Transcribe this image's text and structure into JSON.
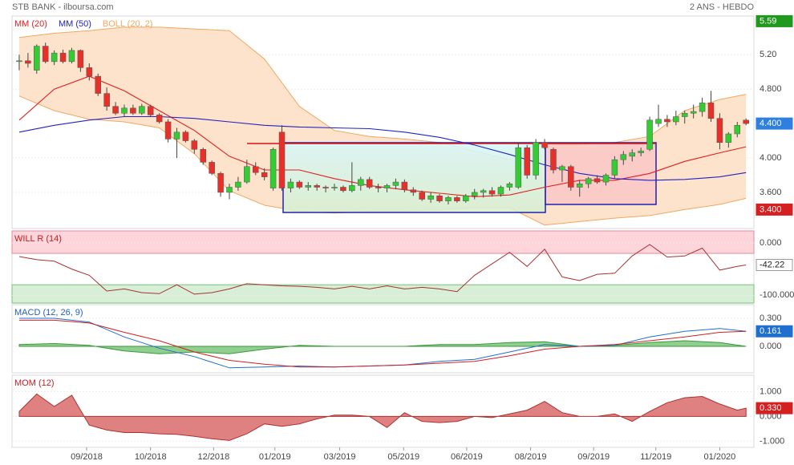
{
  "chart_data": [
    {
      "type": "candlestick",
      "title": "STB BANK - ilboursa.com",
      "subtitle": "2 ANS - HEBDO",
      "x": [
        0,
        1,
        2,
        3,
        4,
        5,
        6,
        7,
        8,
        9,
        10,
        11,
        12,
        13,
        14,
        15,
        16,
        17,
        18,
        19,
        20,
        21,
        22,
        23,
        24,
        25,
        26,
        27,
        28,
        29,
        30,
        31,
        32,
        33,
        34,
        35,
        36,
        37,
        38,
        39,
        40,
        41,
        42,
        43,
        44,
        45,
        46,
        47,
        48,
        49,
        50,
        51,
        52,
        53,
        54,
        55,
        56,
        57,
        58,
        59,
        60,
        61,
        62,
        63,
        64,
        65,
        66,
        67,
        68,
        69,
        70,
        71,
        72,
        73,
        74,
        75,
        76,
        77,
        78,
        79,
        80,
        81,
        82,
        83
      ],
      "open": [
        5.12,
        5.13,
        5.02,
        5.3,
        5.12,
        5.22,
        5.12,
        5.25,
        5.05,
        4.95,
        4.75,
        4.6,
        4.52,
        4.58,
        4.52,
        4.6,
        4.5,
        4.42,
        4.22,
        4.3,
        4.2,
        4.1,
        3.95,
        3.82,
        3.6,
        3.66,
        3.72,
        3.9,
        3.83,
        3.65,
        4.3,
        3.65,
        3.72,
        3.66,
        3.68,
        3.66,
        3.65,
        3.66,
        3.62,
        3.68,
        3.75,
        3.66,
        3.65,
        3.68,
        3.72,
        3.63,
        3.6,
        3.52,
        3.56,
        3.5,
        3.54,
        3.5,
        3.56,
        3.6,
        3.62,
        3.58,
        3.66,
        3.66,
        4.12,
        3.8,
        4.18,
        4.1,
        3.86,
        3.9,
        3.66,
        3.7,
        3.76,
        3.72,
        3.8,
        3.98,
        4.02,
        4.06,
        4.1,
        4.4,
        4.45,
        4.42,
        4.48,
        4.52,
        4.54,
        4.64,
        4.46,
        4.18,
        4.28,
        4.44
      ],
      "high": [
        5.2,
        5.22,
        5.32,
        5.34,
        5.25,
        5.26,
        5.28,
        5.26,
        5.1,
        4.98,
        4.82,
        4.65,
        4.62,
        4.62,
        4.63,
        4.62,
        4.52,
        4.45,
        4.35,
        4.32,
        4.22,
        4.12,
        3.97,
        3.84,
        3.7,
        3.78,
        3.98,
        3.95,
        3.88,
        4.12,
        4.38,
        3.76,
        3.74,
        3.72,
        3.7,
        3.68,
        3.7,
        3.68,
        3.95,
        3.78,
        3.78,
        3.7,
        3.7,
        3.76,
        3.75,
        3.66,
        3.62,
        3.6,
        3.58,
        3.56,
        3.56,
        3.58,
        3.64,
        3.64,
        3.66,
        3.68,
        3.72,
        4.18,
        4.15,
        4.22,
        4.22,
        4.12,
        3.92,
        3.92,
        3.74,
        3.78,
        3.8,
        3.82,
        4.02,
        4.08,
        4.1,
        4.12,
        4.48,
        4.62,
        4.5,
        4.55,
        4.55,
        4.62,
        4.7,
        4.78,
        4.52,
        4.3,
        4.42,
        4.46
      ],
      "low": [
        5.02,
        5.05,
        4.98,
        5.1,
        5.08,
        5.1,
        5.1,
        5.0,
        4.9,
        4.72,
        4.55,
        4.5,
        4.48,
        4.5,
        4.5,
        4.48,
        4.4,
        4.18,
        4.0,
        4.18,
        4.05,
        3.92,
        3.8,
        3.55,
        3.52,
        3.62,
        3.7,
        3.8,
        3.74,
        3.62,
        3.62,
        3.6,
        3.64,
        3.62,
        3.62,
        3.6,
        3.62,
        3.6,
        3.6,
        3.62,
        3.64,
        3.6,
        3.6,
        3.64,
        3.6,
        3.56,
        3.5,
        3.48,
        3.48,
        3.46,
        3.48,
        3.48,
        3.52,
        3.54,
        3.55,
        3.55,
        3.62,
        3.64,
        3.76,
        3.75,
        4.1,
        3.82,
        3.72,
        3.62,
        3.55,
        3.65,
        3.7,
        3.68,
        3.76,
        3.92,
        3.96,
        4.02,
        4.08,
        4.36,
        4.36,
        4.38,
        4.4,
        4.46,
        4.48,
        4.42,
        4.1,
        4.12,
        4.24,
        4.38
      ],
      "close": [
        5.13,
        5.1,
        5.3,
        5.12,
        5.22,
        5.12,
        5.25,
        5.05,
        4.95,
        4.75,
        4.6,
        4.52,
        4.58,
        4.52,
        4.6,
        4.5,
        4.42,
        4.22,
        4.3,
        4.2,
        4.1,
        3.95,
        3.82,
        3.6,
        3.66,
        3.72,
        3.9,
        3.83,
        3.78,
        4.1,
        3.65,
        3.72,
        3.66,
        3.68,
        3.66,
        3.65,
        3.66,
        3.62,
        3.68,
        3.75,
        3.66,
        3.65,
        3.68,
        3.72,
        3.63,
        3.6,
        3.52,
        3.56,
        3.5,
        3.54,
        3.5,
        3.56,
        3.6,
        3.62,
        3.58,
        3.66,
        3.7,
        4.12,
        3.8,
        4.18,
        4.12,
        3.86,
        3.9,
        3.66,
        3.7,
        3.76,
        3.72,
        3.8,
        3.98,
        4.04,
        4.06,
        4.08,
        4.44,
        4.45,
        4.42,
        4.48,
        4.52,
        4.54,
        4.64,
        4.46,
        4.18,
        4.28,
        4.38,
        4.4
      ],
      "up_color": "#33cc33",
      "down_color": "#e8302a",
      "series": [
        {
          "name": "MM (20)",
          "color": "#e02020",
          "x": [
            0,
            4,
            8,
            12,
            16,
            20,
            24,
            28,
            32,
            36,
            40,
            44,
            48,
            52,
            56,
            60,
            64,
            68,
            72,
            76,
            80,
            83
          ],
          "values": [
            4.44,
            4.8,
            4.95,
            4.78,
            4.55,
            4.32,
            4.02,
            3.86,
            3.86,
            3.76,
            3.68,
            3.63,
            3.59,
            3.55,
            3.57,
            3.66,
            3.74,
            3.74,
            3.82,
            3.96,
            4.06,
            4.13
          ]
        },
        {
          "name": "MM (50)",
          "color": "#2222c0",
          "x": [
            0,
            4,
            8,
            12,
            16,
            20,
            24,
            28,
            32,
            36,
            40,
            44,
            48,
            52,
            56,
            60,
            64,
            68,
            72,
            76,
            80,
            83
          ],
          "values": [
            4.3,
            4.38,
            4.44,
            4.48,
            4.48,
            4.46,
            4.42,
            4.38,
            4.36,
            4.35,
            4.34,
            4.3,
            4.24,
            4.15,
            4.04,
            3.92,
            3.82,
            3.76,
            3.74,
            3.75,
            3.78,
            3.83
          ]
        }
      ],
      "bands": {
        "name": "BOLL (20, 2)",
        "color": "#f0a860",
        "fill": "#fde3cb",
        "x": [
          0,
          4,
          8,
          12,
          16,
          20,
          24,
          28,
          32,
          36,
          40,
          44,
          48,
          52,
          56,
          60,
          64,
          68,
          72,
          76,
          80,
          83
        ],
        "upper": [
          5.4,
          5.45,
          5.48,
          5.52,
          5.52,
          5.5,
          5.48,
          5.15,
          4.6,
          4.32,
          4.25,
          4.22,
          4.18,
          4.08,
          3.98,
          4.16,
          4.16,
          4.18,
          4.25,
          4.55,
          4.68,
          4.74
        ],
        "lower": [
          4.72,
          4.55,
          4.45,
          4.42,
          4.35,
          4.05,
          3.62,
          3.45,
          3.38,
          3.36,
          3.38,
          3.38,
          3.4,
          3.42,
          3.42,
          3.22,
          3.26,
          3.3,
          3.33,
          3.4,
          3.46,
          3.53
        ]
      },
      "xlim": [
        -0.82,
        83.9
      ],
      "ylim": [
        3.18,
        5.65
      ],
      "yticks": [
        {
          "value": 5.2,
          "label": "5.20"
        },
        {
          "value": 4.8,
          "label": "4.800"
        },
        {
          "value": 4,
          "label": "4.000"
        },
        {
          "value": 3.6,
          "label": "3.600"
        }
      ],
      "markers": [
        {
          "value": 5.59,
          "label": "5.59",
          "color": "#1f9a1f"
        },
        {
          "value": 4.4,
          "label": "4.400",
          "color": "#2f7fe0"
        },
        {
          "value": 3.4,
          "label": "3.400",
          "color": "#d42020"
        }
      ]
    },
    {
      "type": "line",
      "title": "WILL R (14)",
      "title_color": "#c02020",
      "x": [
        0,
        2,
        4,
        6,
        8,
        10,
        12,
        14,
        16,
        18,
        20,
        22,
        24,
        26,
        28,
        30,
        32,
        34,
        36,
        38,
        40,
        42,
        44,
        46,
        48,
        50,
        52,
        54,
        56,
        58,
        60,
        62,
        64,
        66,
        68,
        70,
        72,
        74,
        76,
        78,
        80,
        82,
        83
      ],
      "values": [
        -26,
        -32,
        -35,
        -50,
        -62,
        -92,
        -88,
        -95,
        -97,
        -80,
        -98,
        -95,
        -88,
        -78,
        -80,
        -82,
        -83,
        -85,
        -88,
        -83,
        -88,
        -82,
        -88,
        -85,
        -88,
        -93,
        -62,
        -40,
        -18,
        -45,
        -12,
        -65,
        -72,
        -60,
        -58,
        -25,
        -3,
        -27,
        -25,
        -10,
        -52,
        -45,
        -42.22
      ],
      "color": "#a83232",
      "overbought": -20,
      "oversold": -80,
      "overbought_color": "#fdd5da",
      "oversold_color": "#d7efd7",
      "xlim": [
        -0.82,
        83.9
      ],
      "ylim": [
        -115,
        23
      ],
      "yticks": [
        {
          "value": 0,
          "label": "0.000"
        },
        {
          "value": -100,
          "label": "-100.000"
        }
      ],
      "markers": [
        {
          "value": -42.22,
          "label": "-42.22",
          "color": "#ffffff"
        }
      ]
    },
    {
      "type": "macd",
      "title": "MACD (12, 26, 9)",
      "title_color": "#1f5fbf",
      "x": [
        0,
        4,
        8,
        12,
        16,
        20,
        24,
        28,
        32,
        36,
        40,
        44,
        48,
        52,
        56,
        60,
        64,
        68,
        72,
        76,
        80,
        83
      ],
      "series": [
        {
          "color": "#1f6fd0",
          "values": [
            0.3,
            0.3,
            0.26,
            0.1,
            -0.02,
            -0.11,
            -0.23,
            -0.22,
            -0.21,
            -0.22,
            -0.21,
            -0.2,
            -0.16,
            -0.14,
            -0.06,
            0.02,
            0.0,
            0.01,
            0.1,
            0.16,
            0.19,
            0.16
          ]
        },
        {
          "color": "#d02020",
          "values": [
            0.28,
            0.28,
            0.25,
            0.15,
            0.06,
            -0.06,
            -0.15,
            -0.19,
            -0.22,
            -0.22,
            -0.21,
            -0.2,
            -0.18,
            -0.16,
            -0.1,
            -0.03,
            0.0,
            0.02,
            0.06,
            0.1,
            0.15,
            0.16
          ]
        }
      ],
      "histogram": {
        "color": "#3a9a3a",
        "fill": "#7cc77c",
        "values": [
          0.02,
          0.03,
          0.01,
          -0.05,
          -0.08,
          -0.06,
          -0.08,
          -0.03,
          0.01,
          0.0,
          0.0,
          0.0,
          0.02,
          0.02,
          0.04,
          0.05,
          0.0,
          0.01,
          0.04,
          0.06,
          0.04,
          0.0
        ]
      },
      "xlim": [
        -0.82,
        83.9
      ],
      "ylim": [
        -0.283,
        0.446
      ],
      "yticks": [
        {
          "value": 0.3,
          "label": "0.300"
        },
        {
          "value": 0,
          "label": "0.000"
        }
      ],
      "markers": [
        {
          "value": 0.161,
          "label": "0.161",
          "color": "#1f6fd0"
        }
      ]
    },
    {
      "type": "area",
      "title": "MOM (12)",
      "title_color": "#c02020",
      "x": [
        0,
        2,
        4,
        6,
        8,
        10,
        12,
        14,
        16,
        18,
        20,
        22,
        24,
        26,
        28,
        30,
        32,
        34,
        36,
        38,
        40,
        42,
        44,
        46,
        48,
        50,
        52,
        54,
        56,
        58,
        60,
        62,
        64,
        66,
        68,
        70,
        72,
        74,
        76,
        78,
        80,
        82,
        83
      ],
      "values": [
        0.2,
        0.9,
        0.4,
        0.85,
        -0.35,
        -0.55,
        -0.65,
        -0.65,
        -0.7,
        -0.72,
        -0.8,
        -0.9,
        -0.97,
        -0.7,
        -0.3,
        -0.4,
        -0.3,
        -0.1,
        0.05,
        0.05,
        0,
        -0.45,
        0.15,
        -0.2,
        -0.25,
        -0.2,
        0,
        -0.05,
        0.1,
        0.25,
        0.6,
        0.15,
        0,
        0,
        0.1,
        -0.2,
        0.2,
        0.55,
        0.75,
        0.8,
        0.5,
        0.25,
        0.33
      ],
      "color": "#b03030",
      "fill": "#d96b6b",
      "xlim": [
        -0.82,
        83.9
      ],
      "ylim": [
        -1.246,
        1.656
      ],
      "yticks": [
        {
          "value": 1,
          "label": "1.000"
        },
        {
          "value": 0,
          "label": "0.000"
        },
        {
          "value": -1,
          "label": "-1.000"
        }
      ],
      "markers": [
        {
          "value": 0.33,
          "label": "0.330",
          "color": "#d42020"
        }
      ],
      "xticks": [
        {
          "value": 7.7,
          "label": "09/2018"
        },
        {
          "value": 15.0,
          "label": "10/2018"
        },
        {
          "value": 22.2,
          "label": "12/2018"
        },
        {
          "value": 29.2,
          "label": "01/2019"
        },
        {
          "value": 36.6,
          "label": "03/2019"
        },
        {
          "value": 43.9,
          "label": "05/2019"
        },
        {
          "value": 51.1,
          "label": "06/2019"
        },
        {
          "value": 58.4,
          "label": "08/2019"
        },
        {
          "value": 65.6,
          "label": "09/2019"
        },
        {
          "value": 72.7,
          "label": "11/2019"
        },
        {
          "value": 80.0,
          "label": "01/2020"
        }
      ]
    }
  ]
}
